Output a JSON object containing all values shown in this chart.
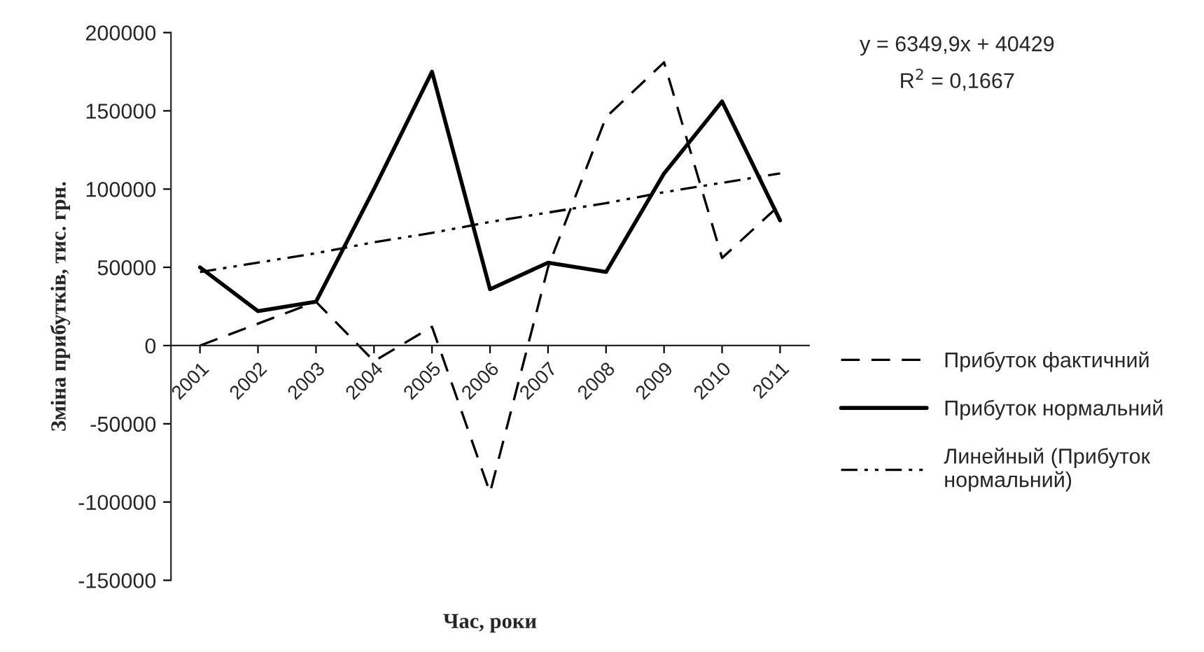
{
  "chart_data": {
    "type": "line",
    "xlabel": "Час, роки",
    "ylabel": "Зміна прибутків, тис. грн.",
    "categories": [
      "2001",
      "2002",
      "2003",
      "2004",
      "2005",
      "2006",
      "2007",
      "2008",
      "2009",
      "2010",
      "2011"
    ],
    "series": [
      {
        "name": "Прибуток фактичний",
        "color": "#000000",
        "line_style": "dashed",
        "values": [
          0,
          14000,
          28000,
          -10000,
          12000,
          -94000,
          50000,
          146000,
          181000,
          56000,
          90000
        ]
      },
      {
        "name": "Прибуток нормальний",
        "color": "#000000",
        "line_style": "solid",
        "values": [
          50000,
          22000,
          28000,
          100000,
          175000,
          36000,
          53000,
          47000,
          110000,
          156000,
          80000
        ]
      },
      {
        "name": "Линейный (Прибуток нормальний)",
        "color": "#000000",
        "line_style": "dotted",
        "values": [
          47000,
          53000,
          59000,
          66000,
          72000,
          79000,
          85000,
          91000,
          98000,
          104000,
          110000
        ]
      }
    ],
    "ylim": [
      -150000,
      200000
    ],
    "yticks": [
      -150000,
      -100000,
      -50000,
      0,
      50000,
      100000,
      150000,
      200000
    ],
    "annotations": [
      "y = 6349,9x + 40429",
      "R$^{2}$ = 0,1667"
    ],
    "grid": false,
    "legend": "right",
    "marker": "none"
  }
}
